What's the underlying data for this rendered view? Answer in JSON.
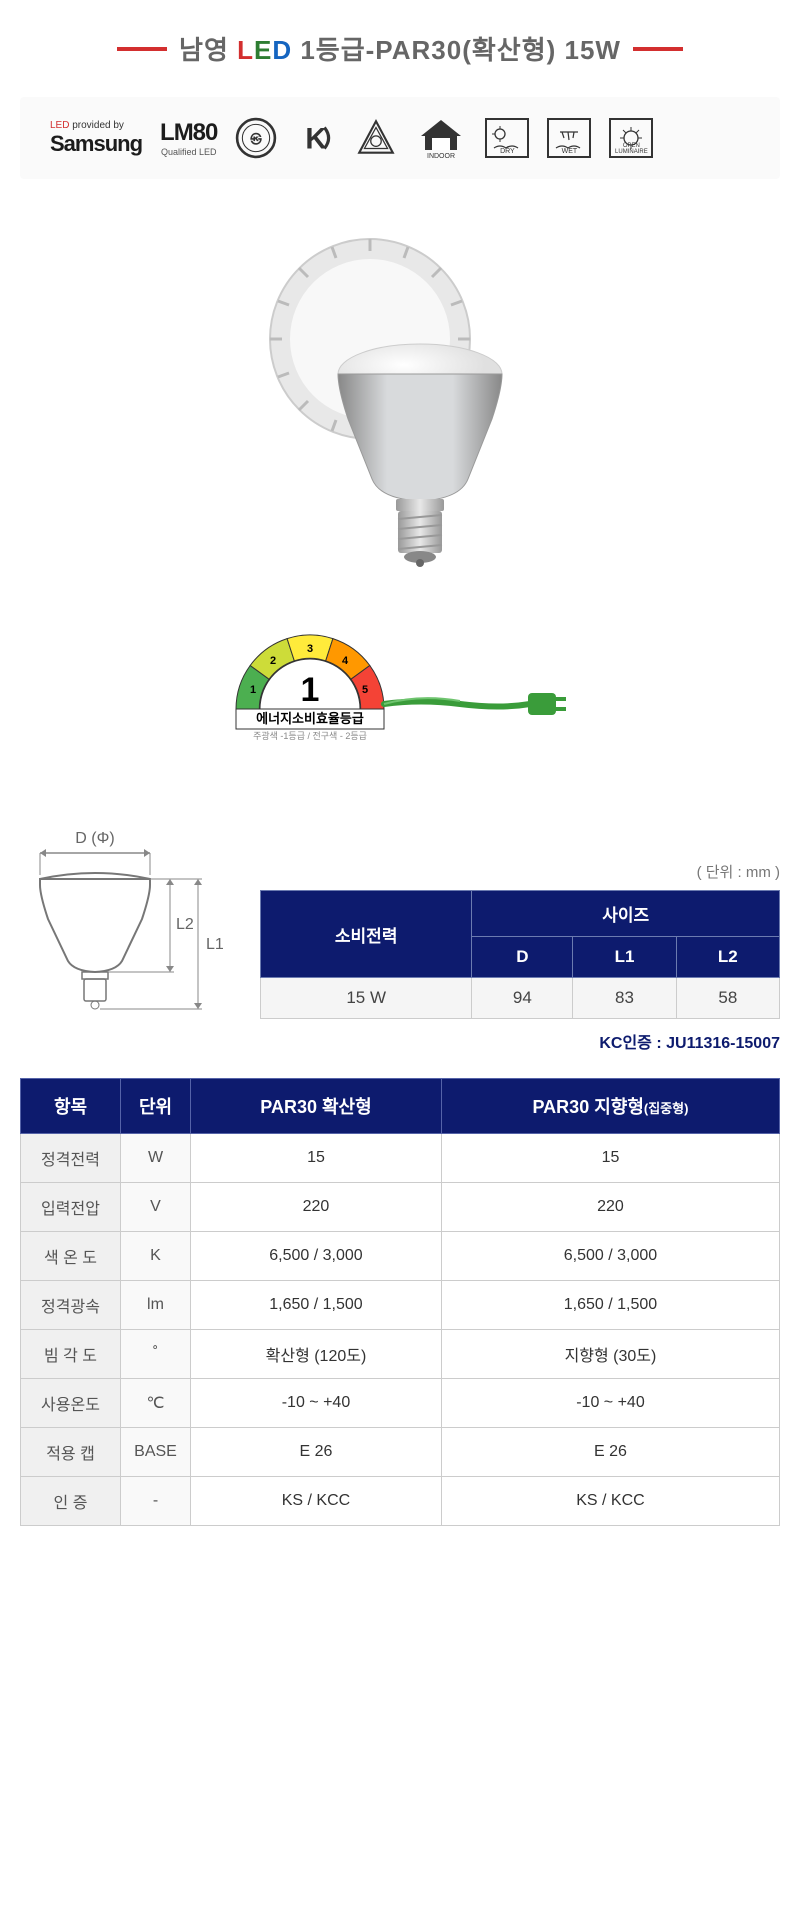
{
  "title": {
    "brand": "남영",
    "led_l": "L",
    "led_e": "E",
    "led_d": "D",
    "rest": " 1등급-PAR30(확산형) 15W"
  },
  "certifications": {
    "samsung_top_led": "LED",
    "samsung_top_rest": " provided by",
    "samsung_name": "Samsung",
    "lm80_top": "LM80",
    "lm80_bot": "Qualified LED",
    "indoor": "INDOOR",
    "dry": "DRY",
    "wet": "WET",
    "open": "OPEN\nLUMINAIRE"
  },
  "energy": {
    "grade_num": "1",
    "grade_label": "에너지소비효율등급",
    "grade_sub": "주광색 -1등급 / 전구색 - 2등급",
    "seg_colors": [
      "#4caf50",
      "#cddc39",
      "#ffeb3b",
      "#ff9800",
      "#f44336"
    ],
    "seg_labels": [
      "1",
      "2",
      "3",
      "4",
      "5"
    ]
  },
  "diagram": {
    "d_label": "D (Φ)",
    "l1_label": "L1",
    "l2_label": "L2",
    "unit_text": "( 단위 : mm )"
  },
  "size_table": {
    "headers": {
      "power": "소비전력",
      "size": "사이즈",
      "d": "D",
      "l1": "L1",
      "l2": "L2"
    },
    "row": {
      "power": "15 W",
      "d": "94",
      "l1": "83",
      "l2": "58"
    }
  },
  "kc_cert": "KC인증 : JU11316-15007",
  "spec_table": {
    "headers": {
      "item": "항목",
      "unit": "단위",
      "par30_flood": "PAR30 확산형",
      "par30_spot": "PAR30 지향형",
      "spot_sub": "(집중형)"
    },
    "rows": [
      {
        "label": "정격전력",
        "unit": "W",
        "flood": "15",
        "spot": "15"
      },
      {
        "label": "입력전압",
        "unit": "V",
        "flood": "220",
        "spot": "220"
      },
      {
        "label": "색 온 도",
        "unit": "K",
        "flood": "6,500 / 3,000",
        "spot": "6,500 / 3,000"
      },
      {
        "label": "정격광속",
        "unit": "lm",
        "flood": "1,650 / 1,500",
        "spot": "1,650 / 1,500"
      },
      {
        "label": "빔 각 도",
        "unit": "˚",
        "flood": "확산형 (120도)",
        "spot": "지향형 (30도)"
      },
      {
        "label": "사용온도",
        "unit": "℃",
        "flood": "-10 ~ +40",
        "spot": "-10 ~ +40"
      },
      {
        "label": "적용 캡",
        "unit": "BASE",
        "flood": "E 26",
        "spot": "E 26"
      },
      {
        "label": "인    증",
        "unit": "-",
        "flood": "KS / KCC",
        "spot": "KS / KCC"
      }
    ]
  },
  "colors": {
    "header_bg": "#0d1b6e",
    "dash_red": "#d32f2f",
    "bulb_body": "#b8bcc0",
    "bulb_dome": "#f2f2f2",
    "plug_green": "#3a9c3a"
  }
}
